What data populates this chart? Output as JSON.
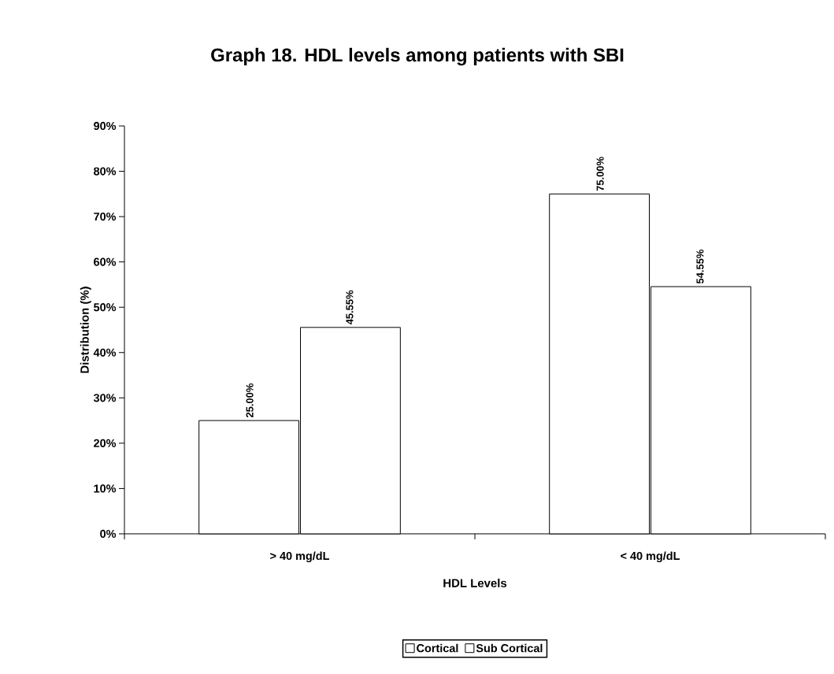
{
  "chart_data": {
    "type": "bar",
    "title": "Graph 18. HDL levels among patients with SBI",
    "xlabel": "HDL Levels",
    "ylabel": "Distribution (%)",
    "categories": [
      "> 40 mg/dL",
      "< 40 mg/dL"
    ],
    "series": [
      {
        "name": "Cortical",
        "color": "#ffffff",
        "values": [
          25,
          75
        ],
        "value_labels": [
          "25.00%",
          "75.00%"
        ]
      },
      {
        "name": "Sub Cortical",
        "color": "#ffffff",
        "values": [
          45.55,
          54.55
        ],
        "value_labels": [
          "45.55%",
          "54.55%"
        ]
      }
    ],
    "ylim": [
      0,
      90
    ],
    "yticks": [
      {
        "value": 0,
        "label": "0%"
      },
      {
        "value": 10,
        "label": "10%"
      },
      {
        "value": 20,
        "label": "20%"
      },
      {
        "value": 30,
        "label": "30%"
      },
      {
        "value": 40,
        "label": "40%"
      },
      {
        "value": 50,
        "label": "50%"
      },
      {
        "value": 60,
        "label": "60%"
      },
      {
        "value": 70,
        "label": "70%"
      },
      {
        "value": 80,
        "label": "80%"
      },
      {
        "value": 90,
        "label": "90%"
      }
    ],
    "grid": false,
    "legend": "bottom"
  }
}
